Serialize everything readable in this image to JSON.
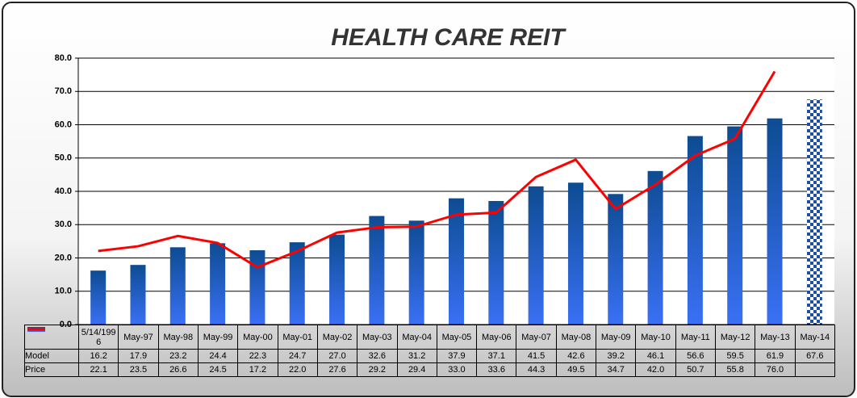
{
  "chart_data": {
    "type": "bar-line",
    "title": "HEALTH CARE REIT",
    "categories": [
      "5/14/1996",
      "May-97",
      "May-98",
      "May-99",
      "May-00",
      "May-01",
      "May-02",
      "May-03",
      "May-04",
      "May-05",
      "May-06",
      "May-07",
      "May-08",
      "May-09",
      "May-10",
      "May-11",
      "May-12",
      "May-13",
      "May-14"
    ],
    "series": [
      {
        "name": "Model",
        "type": "bar",
        "color": "#1f5fbf",
        "last_bar_pattern": "checker",
        "values": [
          16.2,
          17.9,
          23.2,
          24.4,
          22.3,
          24.7,
          27.0,
          32.6,
          31.2,
          37.9,
          37.1,
          41.5,
          42.6,
          39.2,
          46.1,
          56.6,
          59.5,
          61.9,
          67.6
        ],
        "value_labels": [
          "16.2",
          "17.9",
          "23.2",
          "24.4",
          "22.3",
          "24.7",
          "27.0",
          "32.6",
          "31.2",
          "37.9",
          "37.1",
          "41.5",
          "42.6",
          "39.2",
          "46.1",
          "56.6",
          "59.5",
          "61.9",
          "67.6"
        ]
      },
      {
        "name": "Price",
        "type": "line",
        "color": "#ff0000",
        "values": [
          22.1,
          23.5,
          26.6,
          24.5,
          17.2,
          22.0,
          27.6,
          29.2,
          29.4,
          33.0,
          33.6,
          44.3,
          49.5,
          34.7,
          42.0,
          50.7,
          55.8,
          76.0,
          null
        ],
        "value_labels": [
          "22.1",
          "23.5",
          "26.6",
          "24.5",
          "17.2",
          "22.0",
          "27.6",
          "29.2",
          "29.4",
          "33.0",
          "33.6",
          "44.3",
          "49.5",
          "34.7",
          "42.0",
          "50.7",
          "55.8",
          "76.0",
          null
        ]
      }
    ],
    "ylim": [
      0,
      80
    ],
    "yticks": [
      {
        "value": 0,
        "label": "0.0"
      },
      {
        "value": 10,
        "label": "10.0"
      },
      {
        "value": 20,
        "label": "20.0"
      },
      {
        "value": 30,
        "label": "30.0"
      },
      {
        "value": 40,
        "label": "40.0"
      },
      {
        "value": 50,
        "label": "50.0"
      },
      {
        "value": 60,
        "label": "60.0"
      },
      {
        "value": 70,
        "label": "70.0"
      },
      {
        "value": 80,
        "label": "80.0"
      }
    ],
    "grid": true
  }
}
